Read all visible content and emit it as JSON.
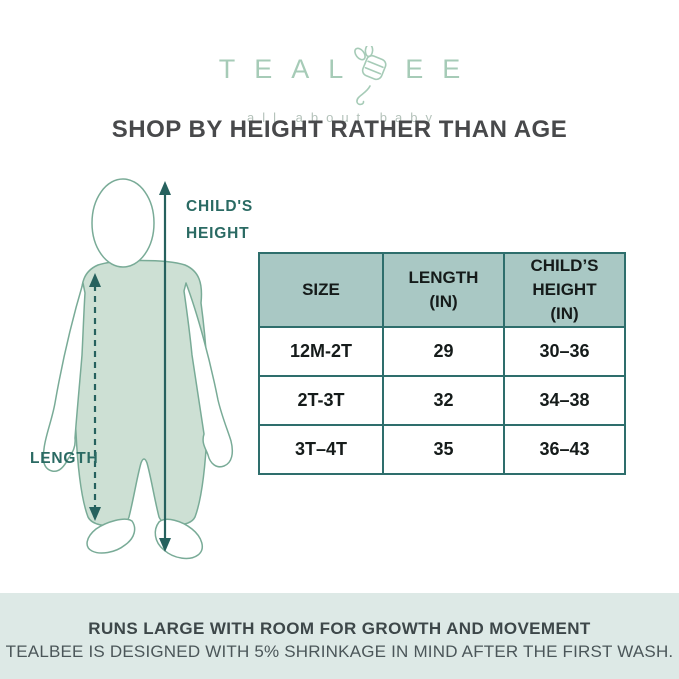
{
  "brand": {
    "name_left": "TEAL",
    "name_right": "EE",
    "tagline": "all about baby",
    "logo_color": "#a6cbb7"
  },
  "heading": "SHOP BY HEIGHT RATHER THAN AGE",
  "diagram": {
    "height_label_line1": "CHILD'S",
    "height_label_line2": "HEIGHT",
    "length_label": "LENGTH"
  },
  "size_chart": {
    "type": "table",
    "columns": [
      "SIZE",
      "LENGTH (IN)",
      "CHILD’S HEIGHT (IN)"
    ],
    "rows": [
      [
        "12M-2T",
        "29",
        "30–36"
      ],
      [
        "2T-3T",
        "32",
        "34–38"
      ],
      [
        "3T–4T",
        "35",
        "36–43"
      ]
    ]
  },
  "footer": {
    "line1": "RUNS LARGE WITH ROOM FOR GROWTH AND MOVEMENT",
    "line2": "TEALBEE IS DESIGNED WITH 5% SHRINKAGE IN MIND AFTER THE FIRST WASH."
  },
  "colors": {
    "logo_green": "#a6cbb7",
    "tagline_gray_green": "#b4c2ba",
    "heading_gray": "#48494b",
    "table_border_teal": "#2e6e6c",
    "table_header_bg": "#a9c8c4",
    "illustration_outline": "#79ab97",
    "romper_fill": "#cde0d4",
    "arrow_teal": "#26615e",
    "label_teal": "#2a6a63",
    "footer_bg": "#dde9e6"
  }
}
